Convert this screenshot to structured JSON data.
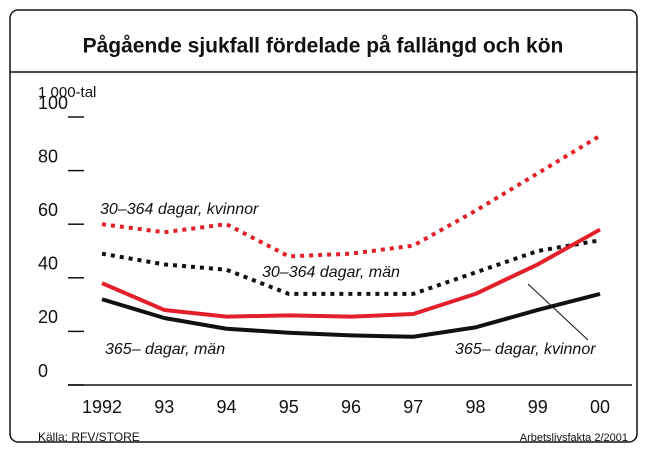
{
  "chart_data": {
    "type": "line",
    "title": "Pågående sjukfall fördelade på fallängd och kön",
    "y_label": "1 000-tal",
    "categories": [
      "1992",
      "93",
      "94",
      "95",
      "96",
      "97",
      "98",
      "99",
      "00"
    ],
    "series": [
      {
        "name": "30–364 dagar, kvinnor",
        "color": "#e3202a",
        "style": "dotted",
        "values": [
          60,
          57,
          60,
          48,
          49,
          52,
          65,
          79,
          93
        ]
      },
      {
        "name": "30–364 dagar, män",
        "color": "#111111",
        "style": "dotted",
        "values": [
          49,
          45,
          43,
          34,
          34,
          34,
          42,
          50,
          54
        ]
      },
      {
        "name": "365– dagar, män",
        "color": "#111111",
        "style": "solid",
        "values": [
          32,
          25,
          21,
          19.5,
          18.5,
          18,
          21.5,
          28,
          34
        ]
      },
      {
        "name": "365– dagar, kvinnor",
        "color": "#e3202a",
        "style": "solid",
        "values": [
          38,
          28,
          25.5,
          26,
          25.5,
          26.5,
          34,
          45,
          58
        ]
      }
    ],
    "ylim": [
      0,
      100
    ],
    "yticks": [
      0,
      20,
      40,
      60,
      80,
      100
    ],
    "source": "Källa: RFV/STORE",
    "publication": "Arbetslivsfakta 2/2001"
  }
}
